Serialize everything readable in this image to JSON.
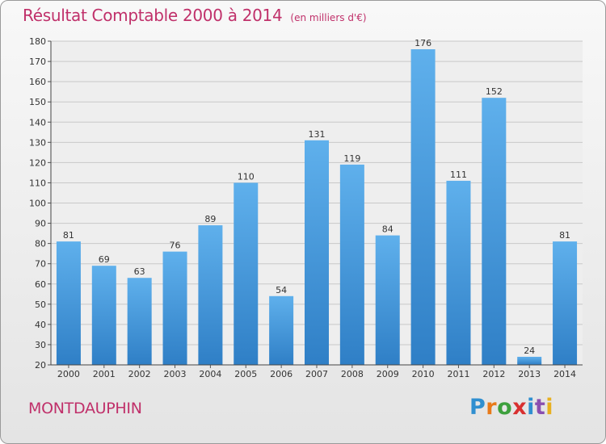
{
  "title": "Résultat Comptable 2000 à 2014",
  "subtitle": "(en milliers d'€)",
  "city": "MONTDAUPHIN",
  "logo": {
    "text": "Proxiti",
    "letters": [
      "P",
      "r",
      "o",
      "x",
      "i",
      "t",
      "i"
    ],
    "colors": [
      "#2f8fd0",
      "#e87a1a",
      "#3da03d",
      "#d83030",
      "#2f8fd0",
      "#8a4fb0",
      "#e8b020"
    ]
  },
  "colors": {
    "title": "#c0306a",
    "bar_top": "#5fb0ec",
    "bar_bottom": "#2f7fc6"
  },
  "chart_data": {
    "type": "bar",
    "categories": [
      "2000",
      "2001",
      "2002",
      "2003",
      "2004",
      "2005",
      "2006",
      "2007",
      "2008",
      "2009",
      "2010",
      "2011",
      "2012",
      "2013",
      "2014"
    ],
    "values": [
      81,
      69,
      63,
      76,
      89,
      110,
      54,
      131,
      119,
      84,
      176,
      111,
      152,
      24,
      81
    ],
    "ylim": [
      20,
      180
    ],
    "yticks": [
      20,
      30,
      40,
      50,
      60,
      70,
      80,
      90,
      100,
      110,
      120,
      130,
      140,
      150,
      160,
      170,
      180
    ],
    "grid": true
  }
}
